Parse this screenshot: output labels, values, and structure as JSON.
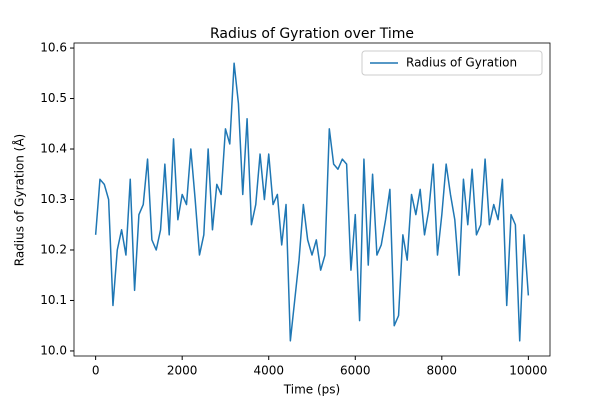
{
  "chart_data": {
    "type": "line",
    "title": "Radius of Gyration over Time",
    "x_label": "Time (ps)",
    "y_label": "Radius of Gyration (Å)",
    "x": [
      0,
      100,
      200,
      300,
      400,
      500,
      600,
      700,
      800,
      900,
      1000,
      1100,
      1200,
      1300,
      1400,
      1500,
      1600,
      1700,
      1800,
      1900,
      2000,
      2100,
      2200,
      2300,
      2400,
      2500,
      2600,
      2700,
      2800,
      2900,
      3000,
      3100,
      3200,
      3300,
      3400,
      3500,
      3600,
      3700,
      3800,
      3900,
      4000,
      4100,
      4200,
      4300,
      4400,
      4500,
      4600,
      4700,
      4800,
      4900,
      5000,
      5100,
      5200,
      5300,
      5400,
      5500,
      5600,
      5700,
      5800,
      5900,
      6000,
      6100,
      6200,
      6300,
      6400,
      6500,
      6600,
      6700,
      6800,
      6900,
      7000,
      7100,
      7200,
      7300,
      7400,
      7500,
      7600,
      7700,
      7800,
      7900,
      8000,
      8100,
      8200,
      8300,
      8400,
      8500,
      8600,
      8700,
      8800,
      8900,
      9000,
      9100,
      9200,
      9300,
      9400,
      9500,
      9600,
      9700,
      9800,
      9900,
      10000
    ],
    "series": [
      {
        "name": "Radius of Gyration",
        "color": "#1f77b4",
        "values": [
          10.23,
          10.34,
          10.33,
          10.3,
          10.09,
          10.2,
          10.24,
          10.19,
          10.34,
          10.12,
          10.27,
          10.29,
          10.38,
          10.22,
          10.2,
          10.24,
          10.37,
          10.23,
          10.42,
          10.26,
          10.31,
          10.29,
          10.4,
          10.3,
          10.19,
          10.23,
          10.4,
          10.24,
          10.33,
          10.31,
          10.44,
          10.41,
          10.57,
          10.49,
          10.31,
          10.46,
          10.25,
          10.29,
          10.39,
          10.3,
          10.39,
          10.29,
          10.31,
          10.21,
          10.29,
          10.02,
          10.1,
          10.18,
          10.29,
          10.22,
          10.19,
          10.22,
          10.16,
          10.19,
          10.44,
          10.37,
          10.36,
          10.38,
          10.37,
          10.16,
          10.27,
          10.06,
          10.38,
          10.17,
          10.35,
          10.19,
          10.21,
          10.26,
          10.32,
          10.05,
          10.07,
          10.23,
          10.18,
          10.31,
          10.27,
          10.32,
          10.23,
          10.28,
          10.37,
          10.19,
          10.27,
          10.37,
          10.31,
          10.26,
          10.15,
          10.34,
          10.25,
          10.36,
          10.23,
          10.25,
          10.38,
          10.25,
          10.29,
          10.26,
          10.34,
          10.09,
          10.27,
          10.25,
          10.02,
          10.23,
          10.11
        ]
      }
    ],
    "xlim": [
      -500,
      10500
    ],
    "xticks": [
      0,
      2000,
      4000,
      6000,
      8000,
      10000
    ],
    "ylim": [
      9.99,
      10.61
    ],
    "yticks": [
      {
        "value": 10.0,
        "label": "10.0"
      },
      10.1,
      10.2,
      10.3,
      10.4,
      10.5,
      10.6
    ],
    "grid": false,
    "legend": "upper right"
  }
}
